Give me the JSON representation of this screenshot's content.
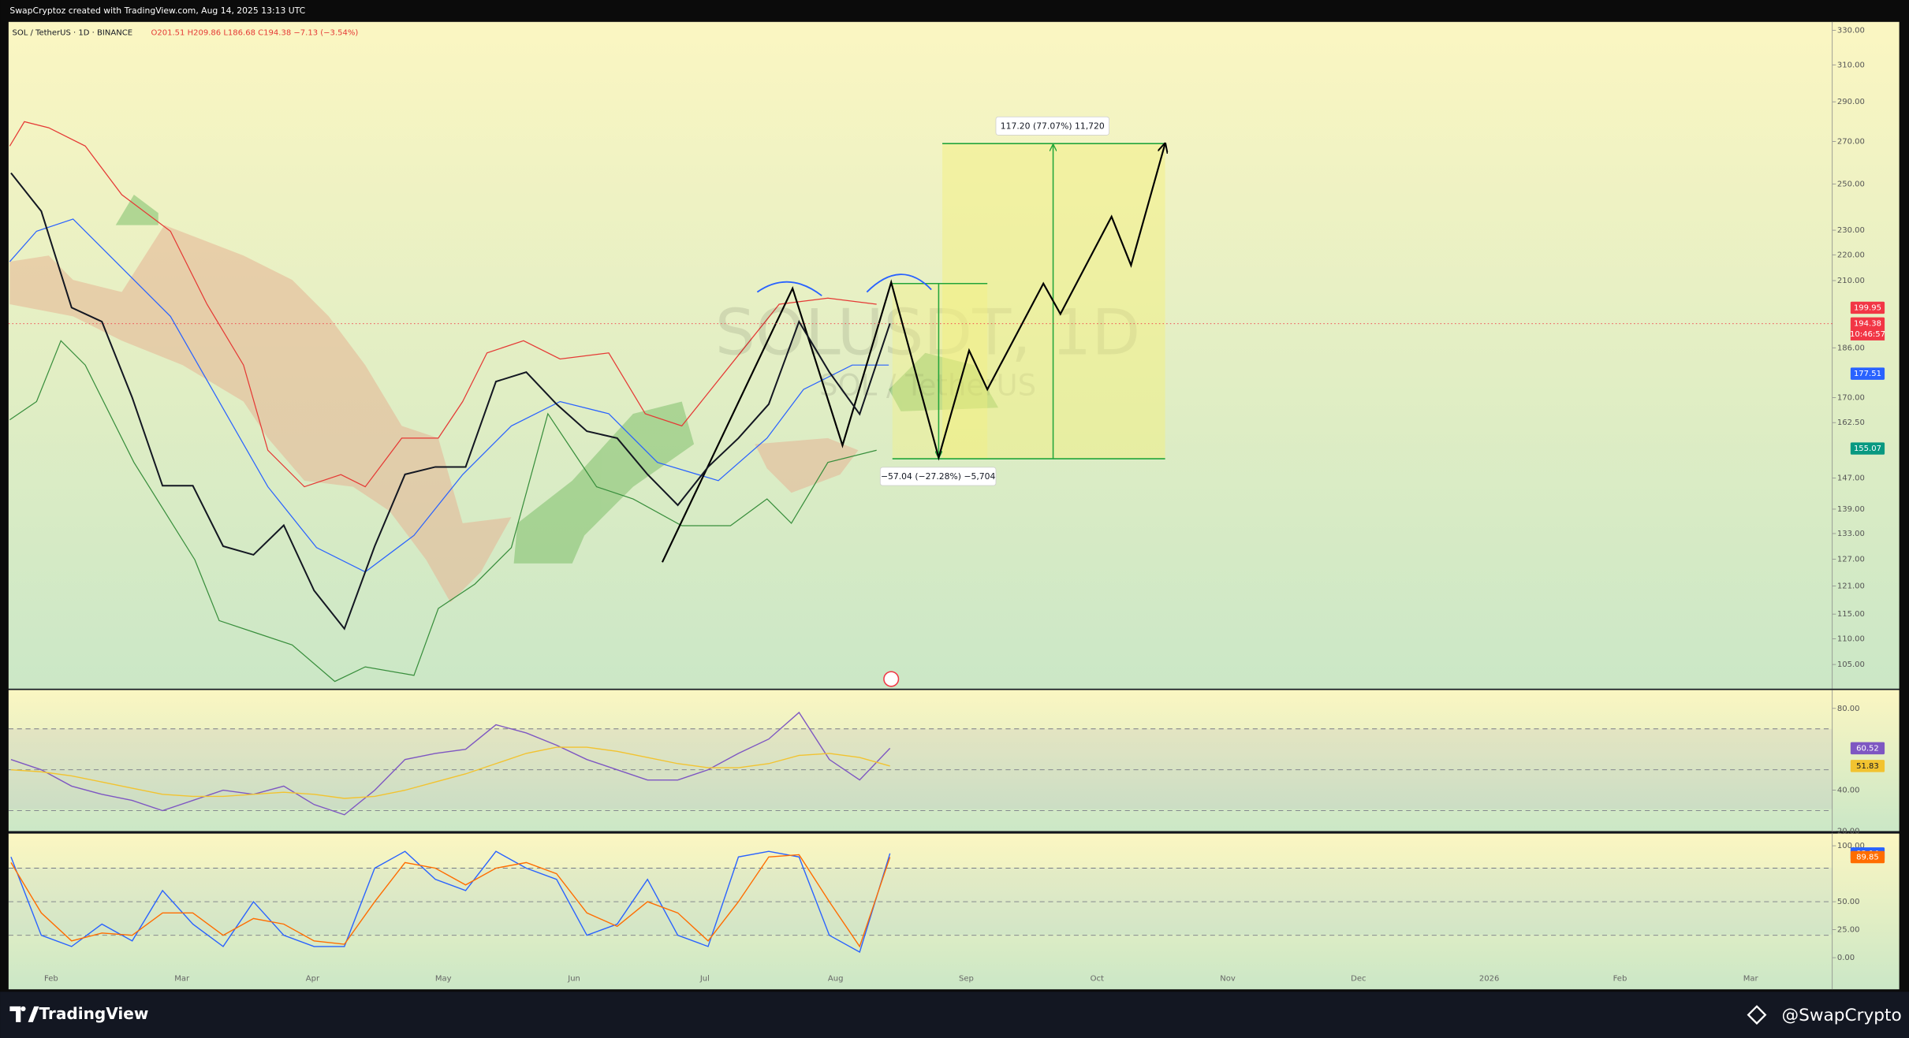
{
  "header": {
    "credit": "SwapCryptoz created with TradingView.com, Aug 14, 2025 13:13 UTC",
    "symbol": "SOL / TetherUS · 1D · BINANCE",
    "ohlc": "O201.51 H209.86 L186.68 C194.38 −7.13 (−3.54%)",
    "watermark": "SOLUSDT, 1D",
    "watermark_sub": "SOL / TetherUS"
  },
  "chart_data": [
    {
      "type": "line",
      "log_scale": true,
      "color": "#131722",
      "ylim": [
        100.5,
        335
      ],
      "yticks": [
        {
          "value": 330,
          "label": "330.00"
        },
        {
          "value": 310,
          "label": "310.00"
        },
        {
          "value": 290,
          "label": "290.00"
        },
        {
          "value": 270,
          "label": "270.00"
        },
        {
          "value": 250,
          "label": "250.00"
        },
        {
          "value": 230,
          "label": "230.00"
        },
        {
          "value": 220,
          "label": "220.00"
        },
        {
          "value": 210,
          "label": "210.00"
        },
        {
          "value": 186,
          "label": "186.00"
        },
        {
          "value": 170,
          "label": "170.00"
        },
        {
          "value": 162.5,
          "label": "162.50"
        },
        {
          "value": 147,
          "label": "147.00"
        },
        {
          "value": 139,
          "label": "139.00"
        },
        {
          "value": 133,
          "label": "133.00"
        },
        {
          "value": 127,
          "label": "127.00"
        },
        {
          "value": 121,
          "label": "121.00"
        },
        {
          "value": 115,
          "label": "115.00"
        },
        {
          "value": 110,
          "label": "110.00"
        },
        {
          "value": 105,
          "label": "105.00"
        }
      ],
      "values": [
        255,
        238,
        200,
        195,
        170,
        145,
        145,
        130,
        128,
        135,
        120,
        112,
        130,
        148,
        150,
        150,
        175,
        178,
        168,
        160,
        158,
        148,
        140,
        150,
        158,
        168,
        195,
        178,
        165,
        194.38
      ],
      "last_color": "#f23645",
      "countdown": "10:46:57",
      "price_tags": [
        {
          "value": 199.95,
          "color": "#f23645"
        },
        {
          "value": 177.51,
          "color": "#2962ff"
        },
        {
          "value": 155.07,
          "color": "#089981"
        }
      ],
      "measurements": [
        "117.20 (77.07%) 11,720",
        "−57.04 (−27.28%) −5,704"
      ]
    },
    {
      "type": "line",
      "ylim": [
        20,
        89
      ],
      "yticks": [
        {
          "value": 80,
          "label": "80.00"
        },
        {
          "value": 40,
          "label": "40.00"
        },
        {
          "value": 20,
          "label": "20.00"
        }
      ],
      "levels": [
        70,
        50,
        30
      ],
      "series": [
        {
          "color": "#7e57c2",
          "values": [
            55,
            50,
            42,
            38,
            35,
            30,
            35,
            40,
            38,
            42,
            33,
            28,
            40,
            55,
            58,
            60,
            72,
            68,
            62,
            55,
            50,
            45,
            45,
            50,
            58,
            65,
            78,
            55,
            45,
            60.52
          ]
        },
        {
          "color": "#f2c330",
          "values": [
            50,
            49,
            47,
            44,
            41,
            38,
            37,
            37,
            38,
            39,
            38,
            36,
            37,
            40,
            44,
            48,
            53,
            58,
            61,
            61,
            59,
            56,
            53,
            51,
            51,
            53,
            57,
            58,
            56,
            51.83
          ]
        }
      ]
    },
    {
      "type": "line",
      "ylim": [
        -8.7,
        110.9
      ],
      "yticks": [
        {
          "value": 100,
          "label": "100.00"
        },
        {
          "value": 50,
          "label": "50.00"
        },
        {
          "value": 25,
          "label": "25.00"
        },
        {
          "value": 0,
          "label": "0.00"
        }
      ],
      "levels": [
        80,
        50,
        20
      ],
      "series": [
        {
          "color": "#2962ff",
          "values": [
            90,
            20,
            10,
            30,
            15,
            60,
            30,
            10,
            50,
            20,
            10,
            10,
            80,
            95,
            70,
            60,
            95,
            80,
            70,
            20,
            30,
            70,
            20,
            10,
            90,
            95,
            90,
            20,
            5,
            93.14
          ]
        },
        {
          "color": "#ff6d00",
          "values": [
            85,
            40,
            15,
            22,
            20,
            40,
            40,
            20,
            35,
            30,
            15,
            12,
            50,
            85,
            80,
            65,
            80,
            85,
            75,
            40,
            28,
            50,
            40,
            15,
            50,
            90,
            92,
            50,
            10,
            89.85
          ]
        }
      ]
    }
  ],
  "x_axis": [
    "Feb",
    "Mar",
    "Apr",
    "May",
    "Jun",
    "Jul",
    "Aug",
    "Sep",
    "Oct",
    "Nov",
    "Dec",
    "2026",
    "Feb",
    "Mar"
  ],
  "footer": {
    "brand": "TradingView",
    "author": "@SwapCrypto"
  }
}
